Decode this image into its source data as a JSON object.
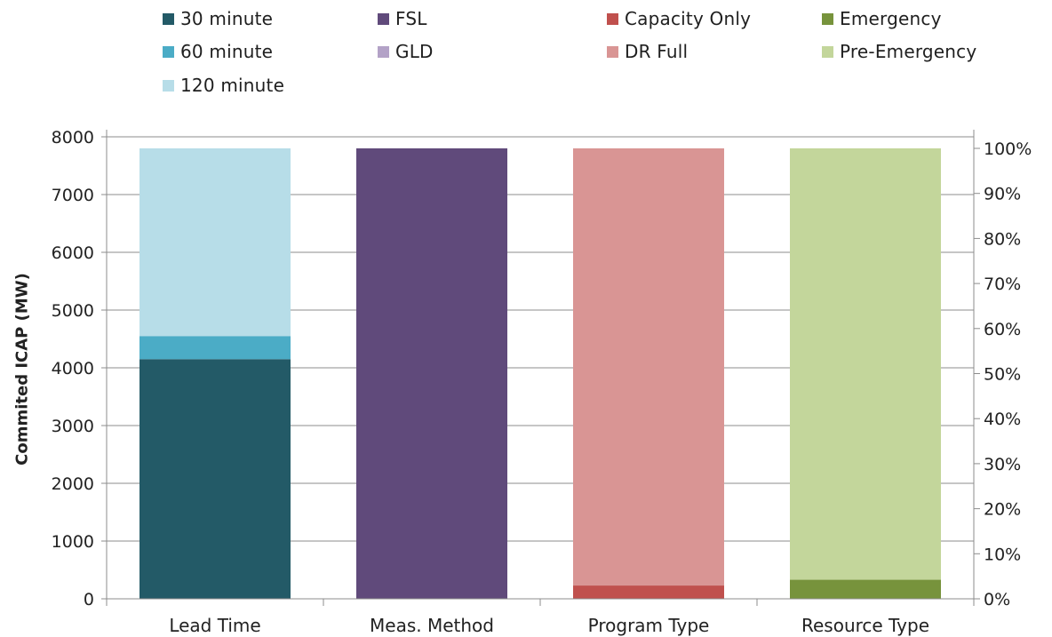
{
  "chart_data": {
    "type": "bar",
    "stacked": true,
    "categories": [
      "Lead Time",
      "Meas. Method",
      "Program Type",
      "Resource Type"
    ],
    "series": [
      {
        "name": "30 minute",
        "color": "#235a67",
        "values": [
          4150,
          0,
          0,
          0
        ]
      },
      {
        "name": "60 minute",
        "color": "#4bacc6",
        "values": [
          400,
          0,
          0,
          0
        ]
      },
      {
        "name": "120 minute",
        "color": "#b7dde8",
        "values": [
          3250,
          0,
          0,
          0
        ]
      },
      {
        "name": "FSL",
        "color": "#604a7b",
        "values": [
          0,
          7800,
          0,
          0
        ]
      },
      {
        "name": "GLD",
        "color": "#b3a2c7",
        "values": [
          0,
          0,
          0,
          0
        ]
      },
      {
        "name": "Capacity Only",
        "color": "#c0504d",
        "values": [
          0,
          0,
          230,
          0
        ]
      },
      {
        "name": "DR Full",
        "color": "#d99594",
        "values": [
          0,
          0,
          7570,
          0
        ]
      },
      {
        "name": "Emergency",
        "color": "#77933c",
        "values": [
          0,
          0,
          0,
          330
        ]
      },
      {
        "name": "Pre-Emergency",
        "color": "#c3d69b",
        "values": [
          0,
          0,
          0,
          7470
        ]
      }
    ],
    "ylabel": "Commited ICAP (MW)",
    "ylim": [
      0,
      8000
    ],
    "yticks": [
      "0",
      "1000",
      "2000",
      "3000",
      "4000",
      "5000",
      "6000",
      "7000",
      "8000"
    ],
    "y2lim": [
      0,
      1.0
    ],
    "y2ticks": [
      "0%",
      "10%",
      "20%",
      "30%",
      "40%",
      "50%",
      "60%",
      "70%",
      "80%",
      "90%",
      "100%"
    ],
    "legend_placement": "top",
    "grid": true
  }
}
